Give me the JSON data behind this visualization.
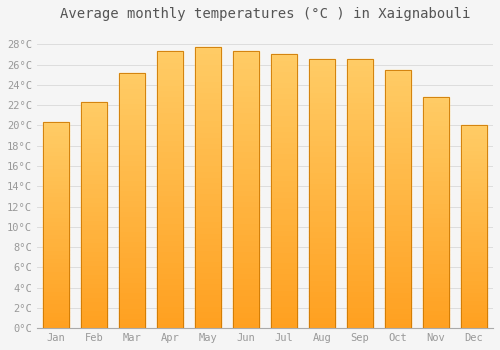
{
  "title": "Average monthly temperatures (°C ) in Xaignabouli",
  "months": [
    "Jan",
    "Feb",
    "Mar",
    "Apr",
    "May",
    "Jun",
    "Jul",
    "Aug",
    "Sep",
    "Oct",
    "Nov",
    "Dec"
  ],
  "temperatures": [
    20.3,
    22.3,
    25.2,
    27.3,
    27.7,
    27.3,
    27.0,
    26.5,
    26.5,
    25.5,
    22.8,
    20.0
  ],
  "bar_color_top": "#FFCC66",
  "bar_color_bottom": "#FFA020",
  "bar_edge_color": "#CC7700",
  "background_color": "#F5F5F5",
  "plot_bg_color": "#F5F5F5",
  "grid_color": "#DDDDDD",
  "ytick_labels": [
    "0°C",
    "2°C",
    "4°C",
    "6°C",
    "8°C",
    "10°C",
    "12°C",
    "14°C",
    "16°C",
    "18°C",
    "20°C",
    "22°C",
    "24°C",
    "26°C",
    "28°C"
  ],
  "ytick_values": [
    0,
    2,
    4,
    6,
    8,
    10,
    12,
    14,
    16,
    18,
    20,
    22,
    24,
    26,
    28
  ],
  "ylim": [
    0,
    29.5
  ],
  "title_fontsize": 10,
  "tick_fontsize": 7.5,
  "tick_color": "#999999",
  "figsize": [
    5.0,
    3.5
  ],
  "dpi": 100
}
